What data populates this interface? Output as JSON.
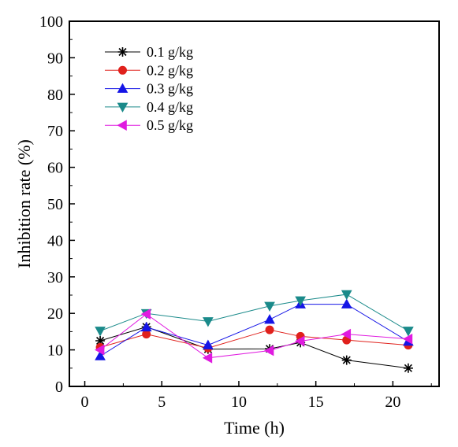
{
  "chart_data": {
    "type": "line",
    "title": "",
    "xlabel": "Time (h)",
    "ylabel": "Inhibition rate (%)",
    "xlim": [
      -1,
      23
    ],
    "ylim": [
      0,
      100
    ],
    "xticks": [
      0,
      5,
      10,
      15,
      20
    ],
    "yticks": [
      0,
      10,
      20,
      30,
      40,
      50,
      60,
      70,
      80,
      90,
      100
    ],
    "grid": false,
    "legend_position": "top-left",
    "x": [
      1,
      4,
      8,
      12,
      14,
      17,
      21
    ],
    "series": [
      {
        "name": "0.1 g/kg",
        "color": "#000000",
        "marker": "star",
        "values": [
          12.5,
          16.3,
          10.2,
          10.3,
          12.0,
          7.2,
          5.0
        ]
      },
      {
        "name": "0.2 g/kg",
        "color": "#e0211c",
        "marker": "circle",
        "values": [
          10.7,
          14.3,
          10.5,
          15.5,
          13.7,
          12.7,
          11.3
        ]
      },
      {
        "name": "0.3 g/kg",
        "color": "#1515e6",
        "marker": "triangle-up",
        "values": [
          8.3,
          16.2,
          11.3,
          18.3,
          22.5,
          22.5,
          12.3
        ]
      },
      {
        "name": "0.4 g/kg",
        "color": "#1a8a8a",
        "marker": "triangle-down",
        "values": [
          15.2,
          20.0,
          17.8,
          22.0,
          23.5,
          25.2,
          15.2
        ]
      },
      {
        "name": "0.5 g/kg",
        "color": "#e01be0",
        "marker": "triangle-left",
        "values": [
          10.0,
          19.8,
          7.8,
          9.8,
          12.4,
          14.3,
          13.0
        ]
      }
    ]
  }
}
